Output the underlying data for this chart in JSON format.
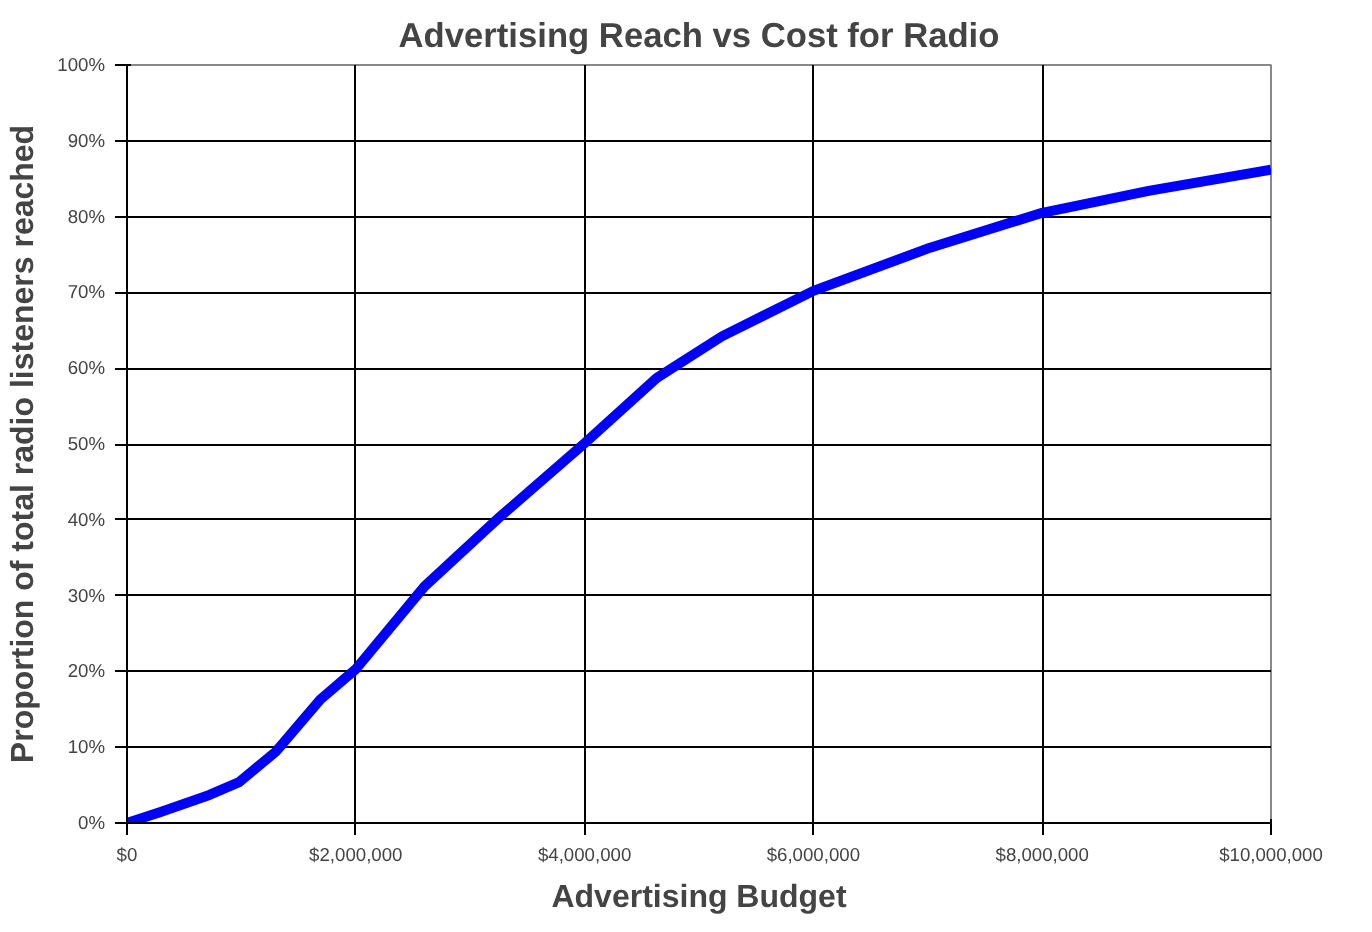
{
  "chart_data": {
    "type": "line",
    "title": "Advertising Reach vs Cost for Radio",
    "xlabel": "Advertising Budget",
    "ylabel": "Proportion of total radio listeners reached",
    "x": [
      0,
      300000,
      720000,
      980000,
      1300000,
      1690000,
      2000000,
      2600000,
      3260000,
      4000000,
      4630000,
      5200000,
      6000000,
      7020000,
      8000000,
      8930000,
      10000000
    ],
    "series": [
      {
        "color": "#0000ff",
        "values": [
          0,
          1.5,
          3.7,
          5.4,
          9.4,
          16.3,
          20.3,
          31.2,
          40.4,
          50.1,
          58.7,
          64.2,
          70.2,
          75.9,
          80.5,
          83.4,
          86.2
        ]
      }
    ],
    "xlim": [
      0,
      10000000
    ],
    "xticks": [
      {
        "value": 0,
        "label": "$0"
      },
      {
        "value": 2000000,
        "label": "$2,000,000"
      },
      {
        "value": 4000000,
        "label": "$4,000,000"
      },
      {
        "value": 6000000,
        "label": "$6,000,000"
      },
      {
        "value": 8000000,
        "label": "$8,000,000"
      },
      {
        "value": 10000000,
        "label": "$10,000,000"
      }
    ],
    "ylim": [
      0,
      100
    ],
    "yticks": [
      {
        "value": 0,
        "label": "0%"
      },
      {
        "value": 10,
        "label": "10%"
      },
      {
        "value": 20,
        "label": "20%"
      },
      {
        "value": 30,
        "label": "30%"
      },
      {
        "value": 40,
        "label": "40%"
      },
      {
        "value": 50,
        "label": "50%"
      },
      {
        "value": 60,
        "label": "60%"
      },
      {
        "value": 70,
        "label": "70%"
      },
      {
        "value": 80,
        "label": "80%"
      },
      {
        "value": 90,
        "label": "90%"
      },
      {
        "value": 100,
        "label": "100%"
      }
    ],
    "grid": true,
    "marker": "none",
    "line_style": "solid"
  }
}
